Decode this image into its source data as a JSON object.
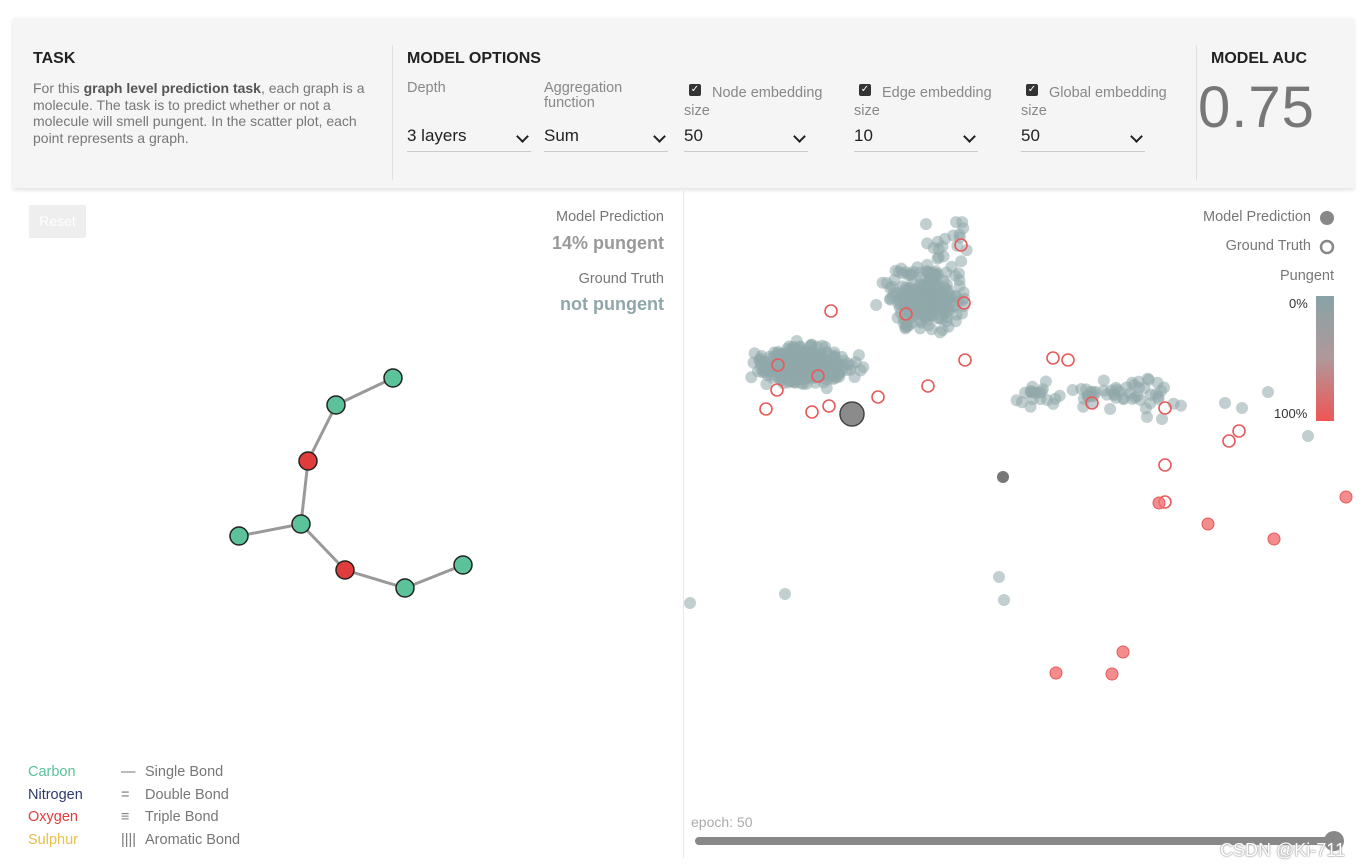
{
  "task": {
    "heading": "TASK",
    "desc_prefix": "For this ",
    "desc_bold": "graph level prediction task",
    "desc_suffix": ", each graph is a molecule. The task is to predict whether or not a molecule will smell pungent. In the scatter plot, each point represents a graph."
  },
  "model_options": {
    "heading": "MODEL OPTIONS",
    "depth": {
      "label": "Depth",
      "value": "3 layers"
    },
    "aggregation": {
      "label": "Aggregation function",
      "value": "Sum"
    },
    "node_embedding": {
      "label": "Node embedding size",
      "checked": true,
      "value": "50"
    },
    "edge_embedding": {
      "label": "Edge embedding size",
      "checked": true,
      "value": "10"
    },
    "global_embedding": {
      "label": "Global embedding size",
      "checked": true,
      "value": "50"
    }
  },
  "model_auc": {
    "heading": "MODEL AUC",
    "value": "0.75"
  },
  "graph_panel": {
    "reset_label": "Reset",
    "prediction_label": "Model Prediction",
    "prediction_value": "14% pungent",
    "truth_label": "Ground Truth",
    "truth_value": "not pungent",
    "atoms": [
      {
        "name": "Carbon",
        "color": "#5cc29a"
      },
      {
        "name": "Nitrogen",
        "color": "#2d3a6e"
      },
      {
        "name": "Oxygen",
        "color": "#e03c3c"
      },
      {
        "name": "Sulphur",
        "color": "#e8c04a"
      }
    ],
    "bonds": [
      {
        "name": "Single Bond",
        "symbol": "—"
      },
      {
        "name": "Double Bond",
        "symbol": "="
      },
      {
        "name": "Triple Bond",
        "symbol": "≡"
      },
      {
        "name": "Aromatic Bond",
        "symbol": "||||"
      }
    ]
  },
  "scatter_panel": {
    "model_prediction_label": "Model Prediction",
    "ground_truth_label": "Ground Truth",
    "pungent_label": "Pungent",
    "scale_top": "0%",
    "scale_bottom": "100%",
    "epoch_label": "epoch: 50",
    "epoch": 50
  },
  "colors": {
    "carbon": "#5cc29a",
    "oxygen": "#e03c3c",
    "point_neutral": "#8fa7aa",
    "point_pungent": "#f07070"
  },
  "watermark": "CSDN @Ki-711"
}
